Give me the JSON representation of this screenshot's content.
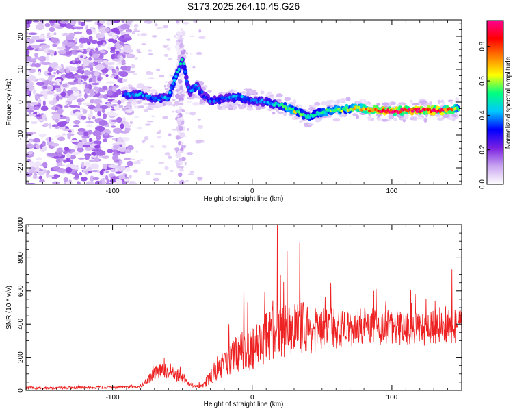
{
  "chart_data": [
    {
      "type": "heatmap",
      "title": "S173.2025.264.10.45.G26",
      "xlabel": "Height of straight line (km)",
      "ylabel": "Frequency (Hz)",
      "xlim": [
        -162,
        150
      ],
      "ylim": [
        -25,
        25
      ],
      "xticks": [
        -100,
        0,
        100
      ],
      "yticks": [
        -20,
        -10,
        0,
        10,
        20
      ],
      "colorbar": {
        "label": "Normalized spectral amplitude",
        "range": [
          0,
          0.95
        ],
        "ticks": [
          0.0,
          0.2,
          0.4,
          0.6,
          0.8
        ],
        "colormap": [
          "#ffffff",
          "#c9a5f0",
          "#7a1fe0",
          "#0000ff",
          "#00c8ff",
          "#00ff80",
          "#ffff00",
          "#ff8000",
          "#ff0000",
          "#ff0090"
        ]
      },
      "ridge": {
        "name": "dominant frequency",
        "x": [
          -90,
          -80,
          -70,
          -60,
          -50,
          -45,
          -40,
          -35,
          -30,
          -20,
          -10,
          0,
          10,
          20,
          30,
          40,
          50,
          60,
          70,
          80,
          90,
          100,
          110,
          120,
          130,
          140,
          147
        ],
        "y": [
          2,
          2.5,
          1,
          1.5,
          13,
          3,
          5,
          2,
          0.5,
          1,
          1.5,
          0.5,
          0,
          -1,
          -2.5,
          -4.5,
          -3,
          -2.5,
          -2,
          -2,
          -2.5,
          -3,
          -2.5,
          -2.5,
          -2.5,
          -2.5,
          -2
        ],
        "amplitude": [
          0.35,
          0.4,
          0.35,
          0.4,
          0.45,
          0.35,
          0.4,
          0.3,
          0.35,
          0.35,
          0.4,
          0.35,
          0.4,
          0.45,
          0.6,
          0.45,
          0.5,
          0.55,
          0.6,
          0.7,
          0.85,
          0.9,
          0.85,
          0.9,
          0.85,
          0.8,
          0.6
        ]
      }
    },
    {
      "type": "line",
      "xlabel": "Height of straight line (km)",
      "ylabel": "SNR (10 * v/v)",
      "xlim": [
        -162,
        150
      ],
      "ylim": [
        0,
        1000
      ],
      "xticks": [
        -100,
        0,
        100
      ],
      "yticks": [
        0,
        200,
        400,
        600,
        800,
        1000
      ],
      "series": [
        {
          "name": "SNR",
          "color": "#ee2222",
          "envelope_x": [
            -162,
            -140,
            -120,
            -100,
            -90,
            -80,
            -75,
            -70,
            -65,
            -60,
            -55,
            -50,
            -45,
            -40,
            -35,
            -30,
            -25,
            -20,
            -15,
            -10,
            -5,
            0,
            5,
            10,
            15,
            18,
            20,
            25,
            30,
            35,
            40,
            45,
            50,
            55,
            60,
            70,
            80,
            90,
            100,
            110,
            120,
            130,
            140,
            150
          ],
          "mean": [
            15,
            15,
            18,
            20,
            20,
            25,
            60,
            110,
            120,
            115,
            95,
            80,
            40,
            20,
            25,
            80,
            120,
            160,
            190,
            230,
            250,
            260,
            290,
            320,
            350,
            360,
            350,
            370,
            380,
            380,
            370,
            360,
            370,
            380,
            370,
            370,
            390,
            380,
            380,
            370,
            380,
            380,
            380,
            390
          ],
          "spread": [
            8,
            8,
            8,
            8,
            8,
            10,
            25,
            40,
            45,
            45,
            40,
            35,
            15,
            10,
            15,
            40,
            60,
            80,
            100,
            120,
            130,
            140,
            150,
            160,
            160,
            170,
            160,
            160,
            160,
            160,
            150,
            140,
            130,
            130,
            120,
            110,
            110,
            110,
            110,
            110,
            110,
            110,
            110,
            110
          ],
          "peaks": [
            {
              "x": 18,
              "y": 1000
            },
            {
              "x": 34,
              "y": 890
            },
            {
              "x": 25,
              "y": 840
            },
            {
              "x": -6,
              "y": 640
            },
            {
              "x": 87,
              "y": 600
            },
            {
              "x": 143,
              "y": 730
            }
          ]
        }
      ]
    }
  ]
}
